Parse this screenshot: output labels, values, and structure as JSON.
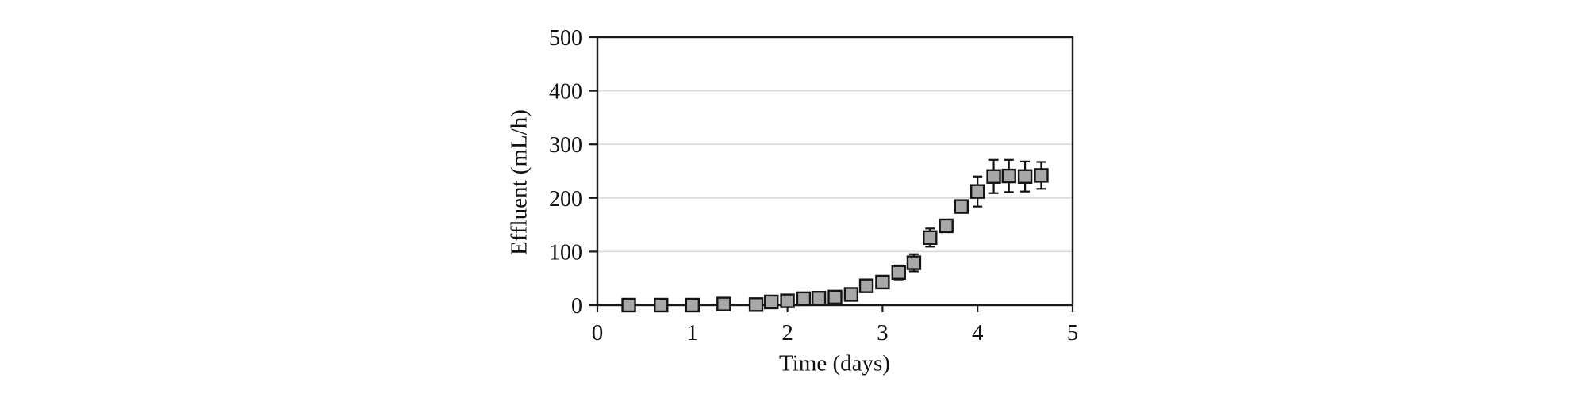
{
  "chart_data": {
    "type": "scatter",
    "title": "",
    "xlabel": "Time (days)",
    "ylabel": "Effluent (mL/h)",
    "xlim": [
      0,
      5
    ],
    "ylim": [
      0,
      500
    ],
    "xticks": [
      "0",
      "1",
      "2",
      "3",
      "4",
      "5"
    ],
    "xtick_values": [
      0,
      1,
      2,
      3,
      4,
      5
    ],
    "yticks": [
      "0",
      "100",
      "200",
      "300",
      "400",
      "500"
    ],
    "ytick_values": [
      0,
      100,
      200,
      300,
      400,
      500
    ],
    "grid": "horizontal-only",
    "legend": "none",
    "marker": {
      "shape": "square",
      "size": 16,
      "fill": "#a8a8a8",
      "stroke": "#141414"
    },
    "series": [
      {
        "name": "Effluent",
        "points": [
          {
            "x": 0.33,
            "y": 0,
            "err": null
          },
          {
            "x": 0.67,
            "y": 0,
            "err": null
          },
          {
            "x": 1.0,
            "y": 0,
            "err": null
          },
          {
            "x": 1.33,
            "y": 2,
            "err": null
          },
          {
            "x": 1.67,
            "y": 1,
            "err": null
          },
          {
            "x": 1.83,
            "y": 6,
            "err": null
          },
          {
            "x": 2.0,
            "y": 8,
            "err": null
          },
          {
            "x": 2.17,
            "y": 12,
            "err": null
          },
          {
            "x": 2.33,
            "y": 13,
            "err": null
          },
          {
            "x": 2.5,
            "y": 15,
            "err": null
          },
          {
            "x": 2.67,
            "y": 20,
            "err": null
          },
          {
            "x": 2.83,
            "y": 36,
            "err": null
          },
          {
            "x": 3.0,
            "y": 43,
            "err": null
          },
          {
            "x": 3.17,
            "y": 61,
            "err": 13
          },
          {
            "x": 3.33,
            "y": 79,
            "err": 16
          },
          {
            "x": 3.5,
            "y": 126,
            "err": 17
          },
          {
            "x": 3.67,
            "y": 148,
            "err": null
          },
          {
            "x": 3.83,
            "y": 184,
            "err": 11
          },
          {
            "x": 4.0,
            "y": 212,
            "err": 28
          },
          {
            "x": 4.17,
            "y": 240,
            "err": 31
          },
          {
            "x": 4.33,
            "y": 241,
            "err": 30
          },
          {
            "x": 4.5,
            "y": 240,
            "err": 28
          },
          {
            "x": 4.67,
            "y": 242,
            "err": 25
          }
        ]
      }
    ]
  },
  "colors": {
    "background": "#ffffff",
    "axis": "#1a1a1a",
    "gridline": "#d9d9d9",
    "tick_label": "#111111",
    "marker_fill": "#a8a8a8",
    "marker_stroke": "#141414",
    "error_bar": "#111111"
  }
}
